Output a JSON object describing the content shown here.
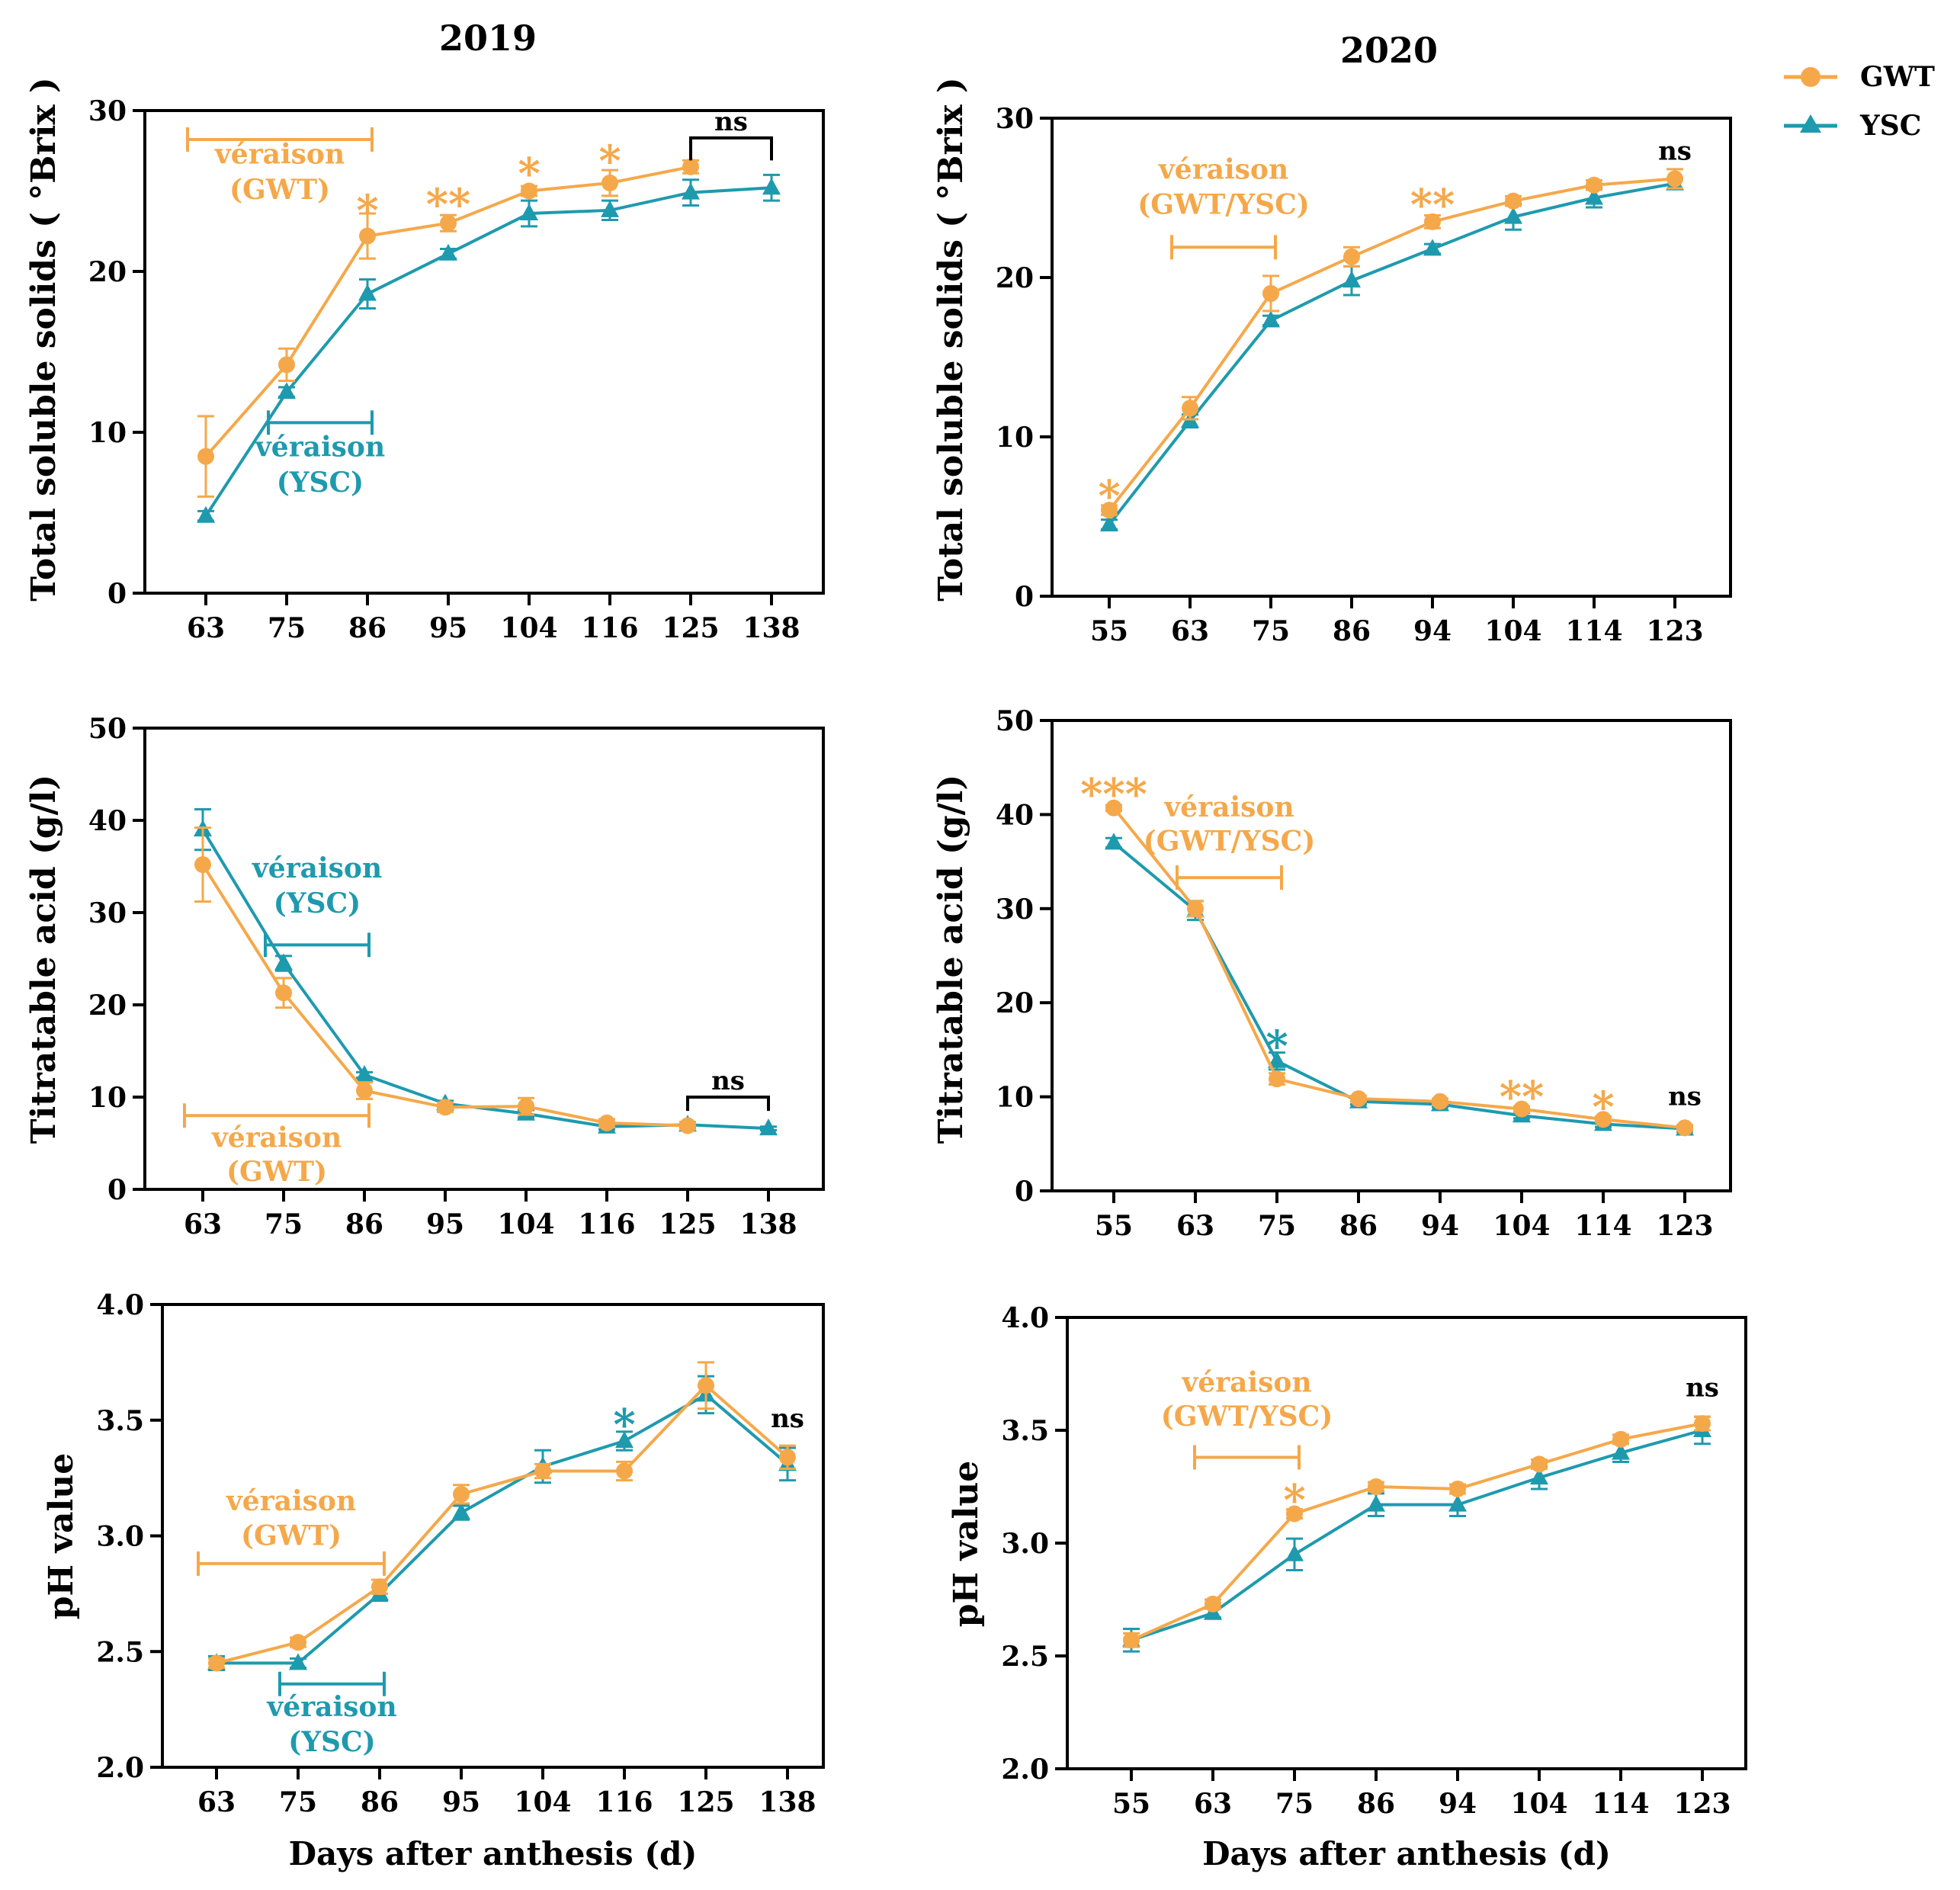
{
  "figure": {
    "column_titles": [
      "2019",
      "2020"
    ],
    "xlabel": "Days after anthesis (d)",
    "colors": {
      "gwt": "#F5A84A",
      "ysc": "#1E9AAE",
      "ns": "#000000"
    }
  },
  "legend": {
    "placement": "top-right",
    "items": [
      {
        "name": "GWT",
        "color": "#F5A84A",
        "marker": "circle"
      },
      {
        "name": "YSC",
        "color": "#1E9AAE",
        "marker": "triangle"
      }
    ]
  },
  "chart_data": [
    {
      "type": "line",
      "panel": "tss-2019",
      "title": "2019",
      "xlabel": "",
      "ylabel": "Total soluble solids ( °Brix )",
      "categories": [
        "63",
        "75",
        "86",
        "95",
        "104",
        "116",
        "125",
        "138"
      ],
      "ylim": [
        0,
        30
      ],
      "yticks": [
        "0",
        "10",
        "20",
        "30"
      ],
      "series": [
        {
          "name": "GWT",
          "values": [
            8.5,
            14.2,
            22.2,
            23.0,
            25.0,
            25.5,
            26.5,
            null
          ],
          "err": [
            2.5,
            1.0,
            1.4,
            0.5,
            0.3,
            0.8,
            0.4,
            null
          ]
        },
        {
          "name": "YSC",
          "values": [
            4.8,
            12.5,
            18.6,
            21.1,
            23.6,
            23.8,
            24.9,
            25.2
          ],
          "err": [
            0.3,
            0.3,
            0.9,
            0.3,
            0.8,
            0.6,
            0.8,
            0.8
          ]
        }
      ],
      "annotations": [
        {
          "text": "*",
          "x": 86,
          "y": 23.9,
          "series": "GWT"
        },
        {
          "text": "**",
          "x": 95,
          "y": 24.3,
          "series": "GWT"
        },
        {
          "text": "*",
          "x": 104,
          "y": 26.2,
          "series": "GWT"
        },
        {
          "text": "*",
          "x": 116,
          "y": 27.0,
          "series": "GWT"
        }
      ],
      "ranges": [
        {
          "label_lines": [
            "véraison",
            "(GWT)"
          ],
          "series": "GWT",
          "from": 63,
          "to": 86,
          "y": 28.2,
          "label_y": [
            26.7,
            24.5
          ]
        },
        {
          "label_lines": [
            "véraison",
            "(YSC)"
          ],
          "series": "YSC",
          "from": 75,
          "to": 86,
          "y": 10.6,
          "label_y": [
            8.5,
            6.3
          ]
        }
      ],
      "ns_bracket": {
        "text": "ns",
        "from": 125,
        "to": 138,
        "y": 28.3,
        "down": 26.9
      }
    },
    {
      "type": "line",
      "panel": "tss-2020",
      "title": "2020",
      "xlabel": "",
      "ylabel": "Total soluble solids ( °Brix )",
      "categories": [
        "55",
        "63",
        "75",
        "86",
        "94",
        "104",
        "114",
        "123"
      ],
      "ylim": [
        0,
        30
      ],
      "yticks": [
        "0",
        "10",
        "20",
        "30"
      ],
      "series": [
        {
          "name": "GWT",
          "values": [
            5.4,
            11.8,
            19.0,
            21.3,
            23.5,
            24.8,
            25.8,
            26.2
          ],
          "err": [
            0.3,
            0.7,
            1.1,
            0.6,
            0.4,
            0.3,
            0.3,
            0.6
          ]
        },
        {
          "name": "YSC",
          "values": [
            4.5,
            11.0,
            17.3,
            19.8,
            21.8,
            23.8,
            25.0,
            25.9
          ],
          "err": [
            0.3,
            0.4,
            0.3,
            0.9,
            0.3,
            0.8,
            0.6,
            0.3
          ]
        }
      ],
      "annotations": [
        {
          "text": "*",
          "x": 55,
          "y": 6.4,
          "series": "GWT"
        },
        {
          "text": "**",
          "x": 94,
          "y": 24.7,
          "series": "GWT"
        }
      ],
      "ranges": [
        {
          "label_lines": [
            "véraison",
            "(GWT/YSC)"
          ],
          "series": "GWT",
          "from": 63,
          "to": 75,
          "y": 21.9,
          "label_y": [
            26.2,
            24.0
          ]
        }
      ],
      "ns_label": {
        "text": "ns",
        "x": 123,
        "y": 27.4
      }
    },
    {
      "type": "line",
      "panel": "ta-2019",
      "title": "",
      "xlabel": "",
      "ylabel": "Titratable acid (g/l)",
      "categories": [
        "63",
        "75",
        "86",
        "95",
        "104",
        "116",
        "125",
        "138"
      ],
      "ylim": [
        0,
        50
      ],
      "yticks": [
        "0",
        "10",
        "20",
        "30",
        "40",
        "50"
      ],
      "series": [
        {
          "name": "GWT",
          "values": [
            35.2,
            21.3,
            10.7,
            8.9,
            9.0,
            7.2,
            6.9,
            null
          ],
          "err": [
            4.0,
            1.6,
            0.9,
            0.5,
            0.9,
            0.4,
            0.4,
            null
          ]
        },
        {
          "name": "YSC",
          "values": [
            39.0,
            24.5,
            12.4,
            9.3,
            8.2,
            6.8,
            7.0,
            6.6
          ],
          "err": [
            2.2,
            0.8,
            0.3,
            0.3,
            0.4,
            0.3,
            0.3,
            0.2
          ]
        }
      ],
      "annotations": [],
      "ranges": [
        {
          "label_lines": [
            "véraison",
            "(YSC)"
          ],
          "series": "YSC",
          "from": 75,
          "to": 86,
          "y": 26.5,
          "label_y": [
            33.8,
            30.0
          ]
        },
        {
          "label_lines": [
            "véraison",
            "(GWT)"
          ],
          "series": "GWT",
          "from": 63,
          "to": 86,
          "y": 8.0,
          "label_y": [
            4.6,
            0.9
          ]
        }
      ],
      "ns_bracket": {
        "text": "ns",
        "from": 125,
        "to": 138,
        "y": 10.0,
        "down": 8.5
      }
    },
    {
      "type": "line",
      "panel": "ta-2020",
      "title": "",
      "xlabel": "",
      "ylabel": "Titratable acid (g/l)",
      "categories": [
        "55",
        "63",
        "75",
        "86",
        "94",
        "104",
        "114",
        "123"
      ],
      "ylim": [
        0,
        50
      ],
      "yticks": [
        "0",
        "10",
        "20",
        "30",
        "40",
        "50"
      ],
      "series": [
        {
          "name": "GWT",
          "values": [
            40.7,
            30.0,
            11.9,
            9.8,
            9.5,
            8.7,
            7.6,
            6.7
          ],
          "err": [
            0.3,
            0.8,
            0.6,
            0.3,
            0.3,
            0.3,
            0.3,
            0.3
          ]
        },
        {
          "name": "YSC",
          "values": [
            37.0,
            29.8,
            13.8,
            9.5,
            9.2,
            8.0,
            7.1,
            6.6
          ],
          "err": [
            0.5,
            1.0,
            0.9,
            0.3,
            0.3,
            0.3,
            0.3,
            0.3
          ]
        }
      ],
      "annotations": [
        {
          "text": "***",
          "x": 55,
          "y": 42.4,
          "series": "GWT"
        },
        {
          "text": "*",
          "x": 75,
          "y": 15.6,
          "series": "YSC"
        },
        {
          "text": "**",
          "x": 104,
          "y": 10.2,
          "series": "GWT"
        },
        {
          "text": "*",
          "x": 114,
          "y": 9.1,
          "series": "GWT"
        }
      ],
      "ranges": [
        {
          "label_lines": [
            "véraison",
            "(GWT/YSC)"
          ],
          "series": "GWT",
          "from": 63,
          "to": 75,
          "y": 33.3,
          "label_y": [
            39.8,
            36.2
          ]
        }
      ],
      "ns_label": {
        "text": "ns",
        "x": 123,
        "y": 9.1
      }
    },
    {
      "type": "line",
      "panel": "ph-2019",
      "title": "",
      "xlabel": "Days after anthesis (d)",
      "ylabel": "pH value",
      "categories": [
        "63",
        "75",
        "86",
        "95",
        "104",
        "116",
        "125",
        "138"
      ],
      "ylim": [
        2.0,
        4.0
      ],
      "yticks": [
        "2.0",
        "2.5",
        "3.0",
        "3.5",
        "4.0"
      ],
      "series": [
        {
          "name": "GWT",
          "values": [
            2.45,
            2.54,
            2.78,
            3.18,
            3.28,
            3.28,
            3.65,
            3.34
          ],
          "err": [
            0.02,
            0.02,
            0.03,
            0.04,
            0.03,
            0.04,
            0.1,
            0.05
          ]
        },
        {
          "name": "YSC",
          "values": [
            2.45,
            2.45,
            2.75,
            3.1,
            3.3,
            3.41,
            3.61,
            3.31
          ],
          "err": [
            0.03,
            0.02,
            0.03,
            0.03,
            0.07,
            0.04,
            0.08,
            0.07
          ]
        }
      ],
      "annotations": [
        {
          "text": "*",
          "x": 116,
          "y": 3.49,
          "series": "YSC"
        }
      ],
      "ranges": [
        {
          "label_lines": [
            "véraison",
            "(GWT)"
          ],
          "series": "GWT",
          "from": 63,
          "to": 86,
          "y": 2.88,
          "label_y": [
            3.11,
            2.96
          ]
        },
        {
          "label_lines": [
            "véraison",
            "(YSC)"
          ],
          "series": "YSC",
          "from": 75,
          "to": 86,
          "y": 2.36,
          "label_y": [
            2.22,
            2.07
          ]
        }
      ],
      "ns_label": {
        "text": "ns",
        "x": 138,
        "y": 3.47
      }
    },
    {
      "type": "line",
      "panel": "ph-2020",
      "title": "",
      "xlabel": "Days after anthesis (d)",
      "ylabel": "pH value",
      "categories": [
        "55",
        "63",
        "75",
        "86",
        "94",
        "104",
        "114",
        "123"
      ],
      "ylim": [
        2.0,
        4.0
      ],
      "yticks": [
        "2.0",
        "2.5",
        "3.0",
        "3.5",
        "4.0"
      ],
      "series": [
        {
          "name": "GWT",
          "values": [
            2.57,
            2.73,
            3.13,
            3.25,
            3.24,
            3.35,
            3.46,
            3.53
          ],
          "err": [
            0.03,
            0.02,
            0.02,
            0.02,
            0.02,
            0.02,
            0.02,
            0.03
          ]
        },
        {
          "name": "YSC",
          "values": [
            2.57,
            2.69,
            2.95,
            3.17,
            3.17,
            3.29,
            3.4,
            3.5
          ],
          "err": [
            0.05,
            0.02,
            0.07,
            0.05,
            0.05,
            0.05,
            0.04,
            0.06
          ]
        }
      ],
      "annotations": [
        {
          "text": "*",
          "x": 75,
          "y": 3.2,
          "series": "GWT"
        }
      ],
      "ranges": [
        {
          "label_lines": [
            "véraison",
            "(GWT/YSC)"
          ],
          "series": "GWT",
          "from": 63,
          "to": 75,
          "y": 3.38,
          "label_y": [
            3.67,
            3.52
          ]
        }
      ],
      "ns_label": {
        "text": "ns",
        "x": 123,
        "y": 3.65
      }
    }
  ]
}
